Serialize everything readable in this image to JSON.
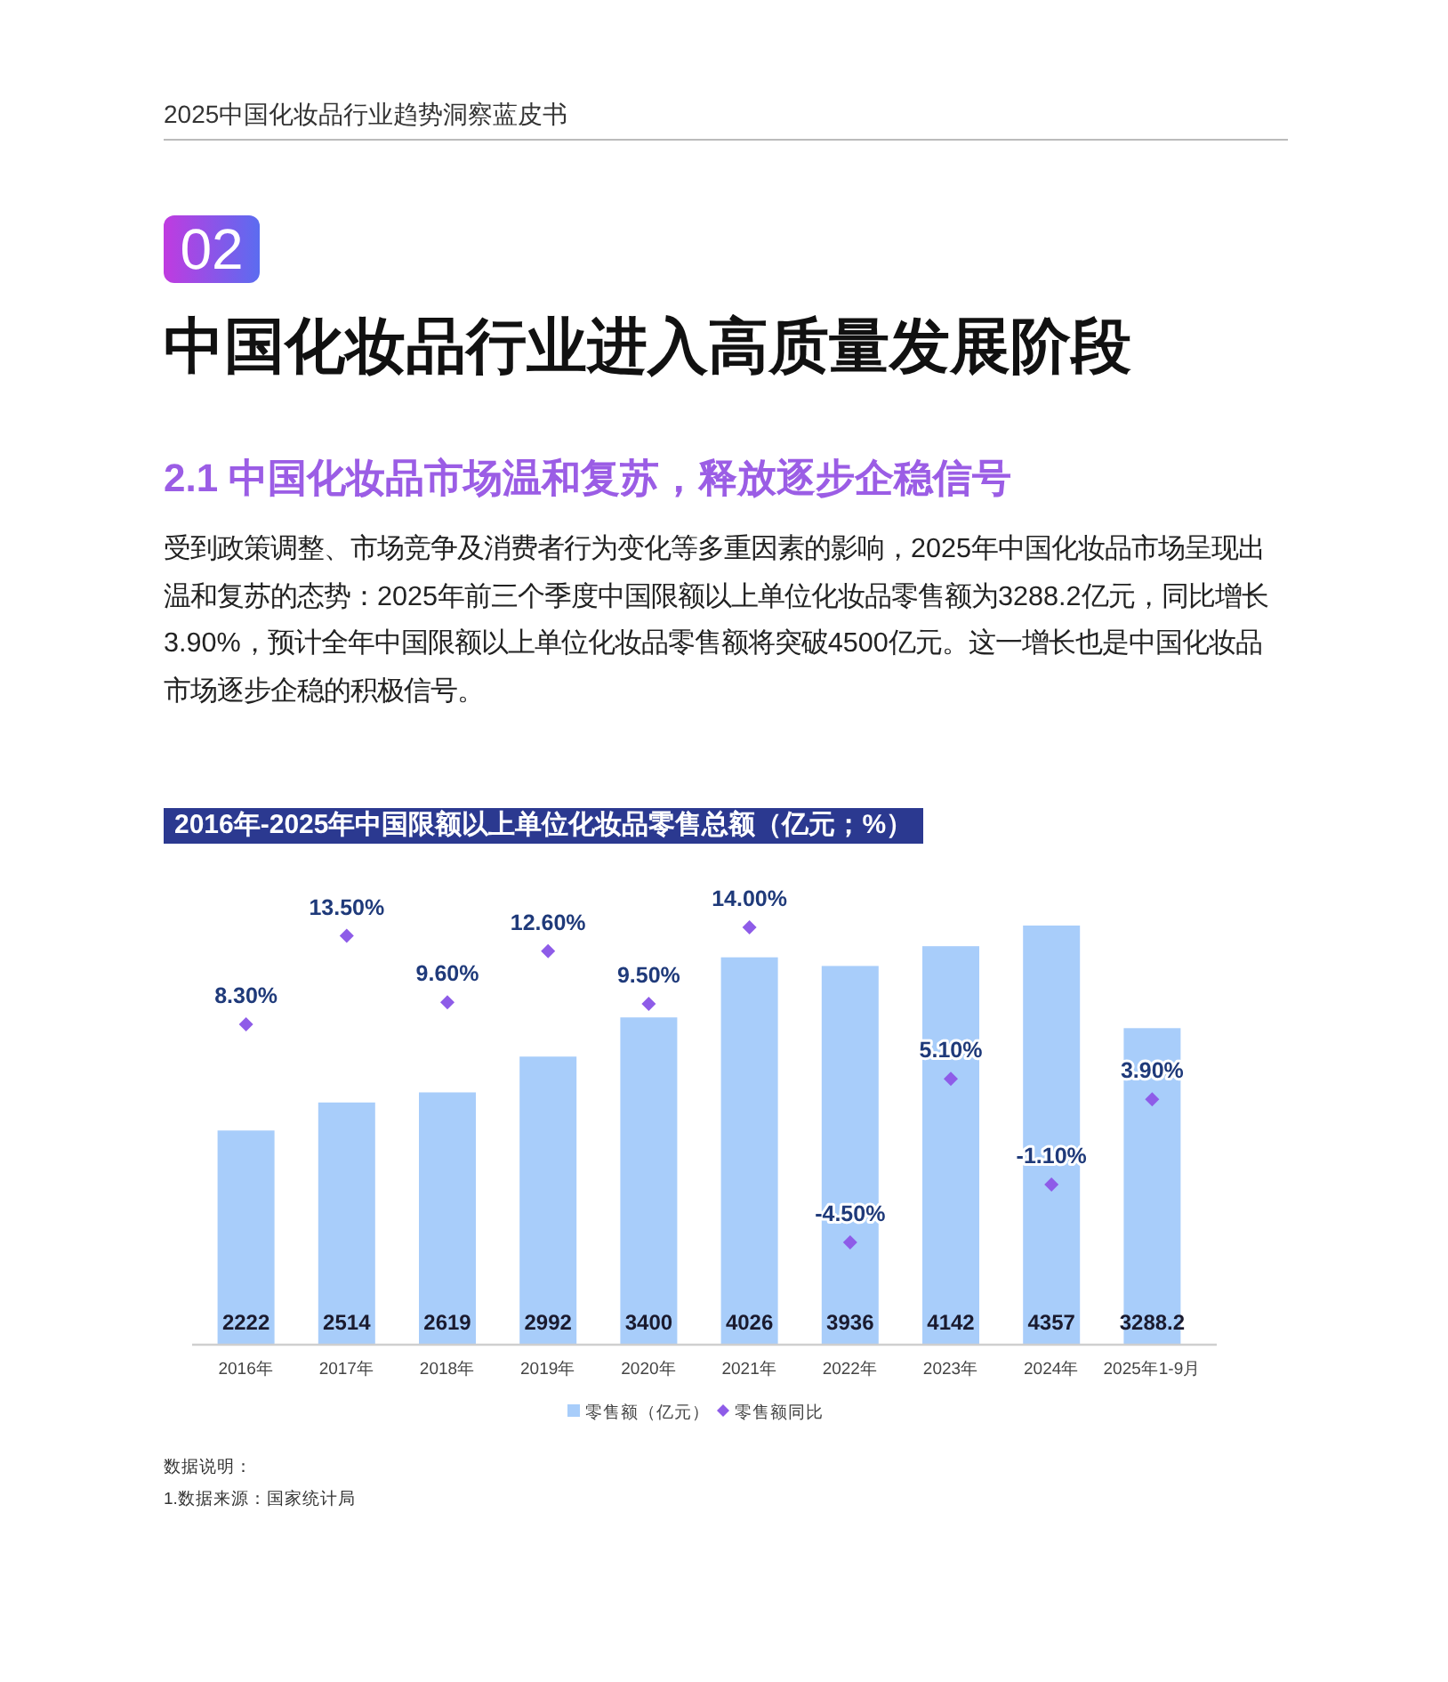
{
  "chart_data": {
    "type": "bar",
    "title": "2016年-2025年中国限额以上单位化妆品零售总额（亿元；%）",
    "annotations": [
      "2025中国化妆品行业趋势洞察蓝皮书",
      "02",
      "中国化妆品行业进入高质量发展阶段",
      "2.1 中国化妆品市场温和复苏，释放逐步企稳信号",
      "受到政策调整、市场竞争及消费者行为变化等多重因素的影响，2025年中国化妆品市场呈现出温和复苏的态势：2025年前三个季度中国限额以上单位化妆品零售额为3288.2亿元，同比增长3.90%，预计全年中国限额以上单位化妆品零售额将突破4500亿元。这一增长也是中国化妆品市场逐步企稳的积极信号。",
      "数据说明：",
      "1.数据来源：国家统计局"
    ],
    "categories": [
      "2016年",
      "2017年",
      "2018年",
      "2019年",
      "2020年",
      "2021年",
      "2022年",
      "2023年",
      "2024年",
      "2025年1-9月"
    ],
    "series": [
      {
        "name": "零售额（亿元）",
        "color": "#a8cdfa",
        "values": [
          2222,
          2514,
          2619,
          2992,
          3400,
          4026,
          3936,
          4142,
          4357,
          3288.2
        ],
        "value_labels": [
          "2222",
          "2514",
          "2619",
          "2992",
          "3400",
          "4026",
          "3936",
          "4142",
          "4357",
          "3288.2"
        ]
      },
      {
        "name": "零售额同比",
        "type": "scatter",
        "axis": "y2",
        "marker": "diamond",
        "color": "#8e5ce8",
        "values": [
          8.3,
          13.5,
          9.6,
          12.6,
          9.5,
          14.0,
          -4.5,
          5.1,
          -1.1,
          3.9
        ],
        "value_labels": [
          "8.30%",
          "13.50%",
          "9.60%",
          "12.60%",
          "9.50%",
          "14.00%",
          "-4.50%",
          "5.10%",
          "-1.10%",
          "3.90%"
        ]
      }
    ],
    "tick_labels": "x",
    "legend": "bottom"
  }
}
